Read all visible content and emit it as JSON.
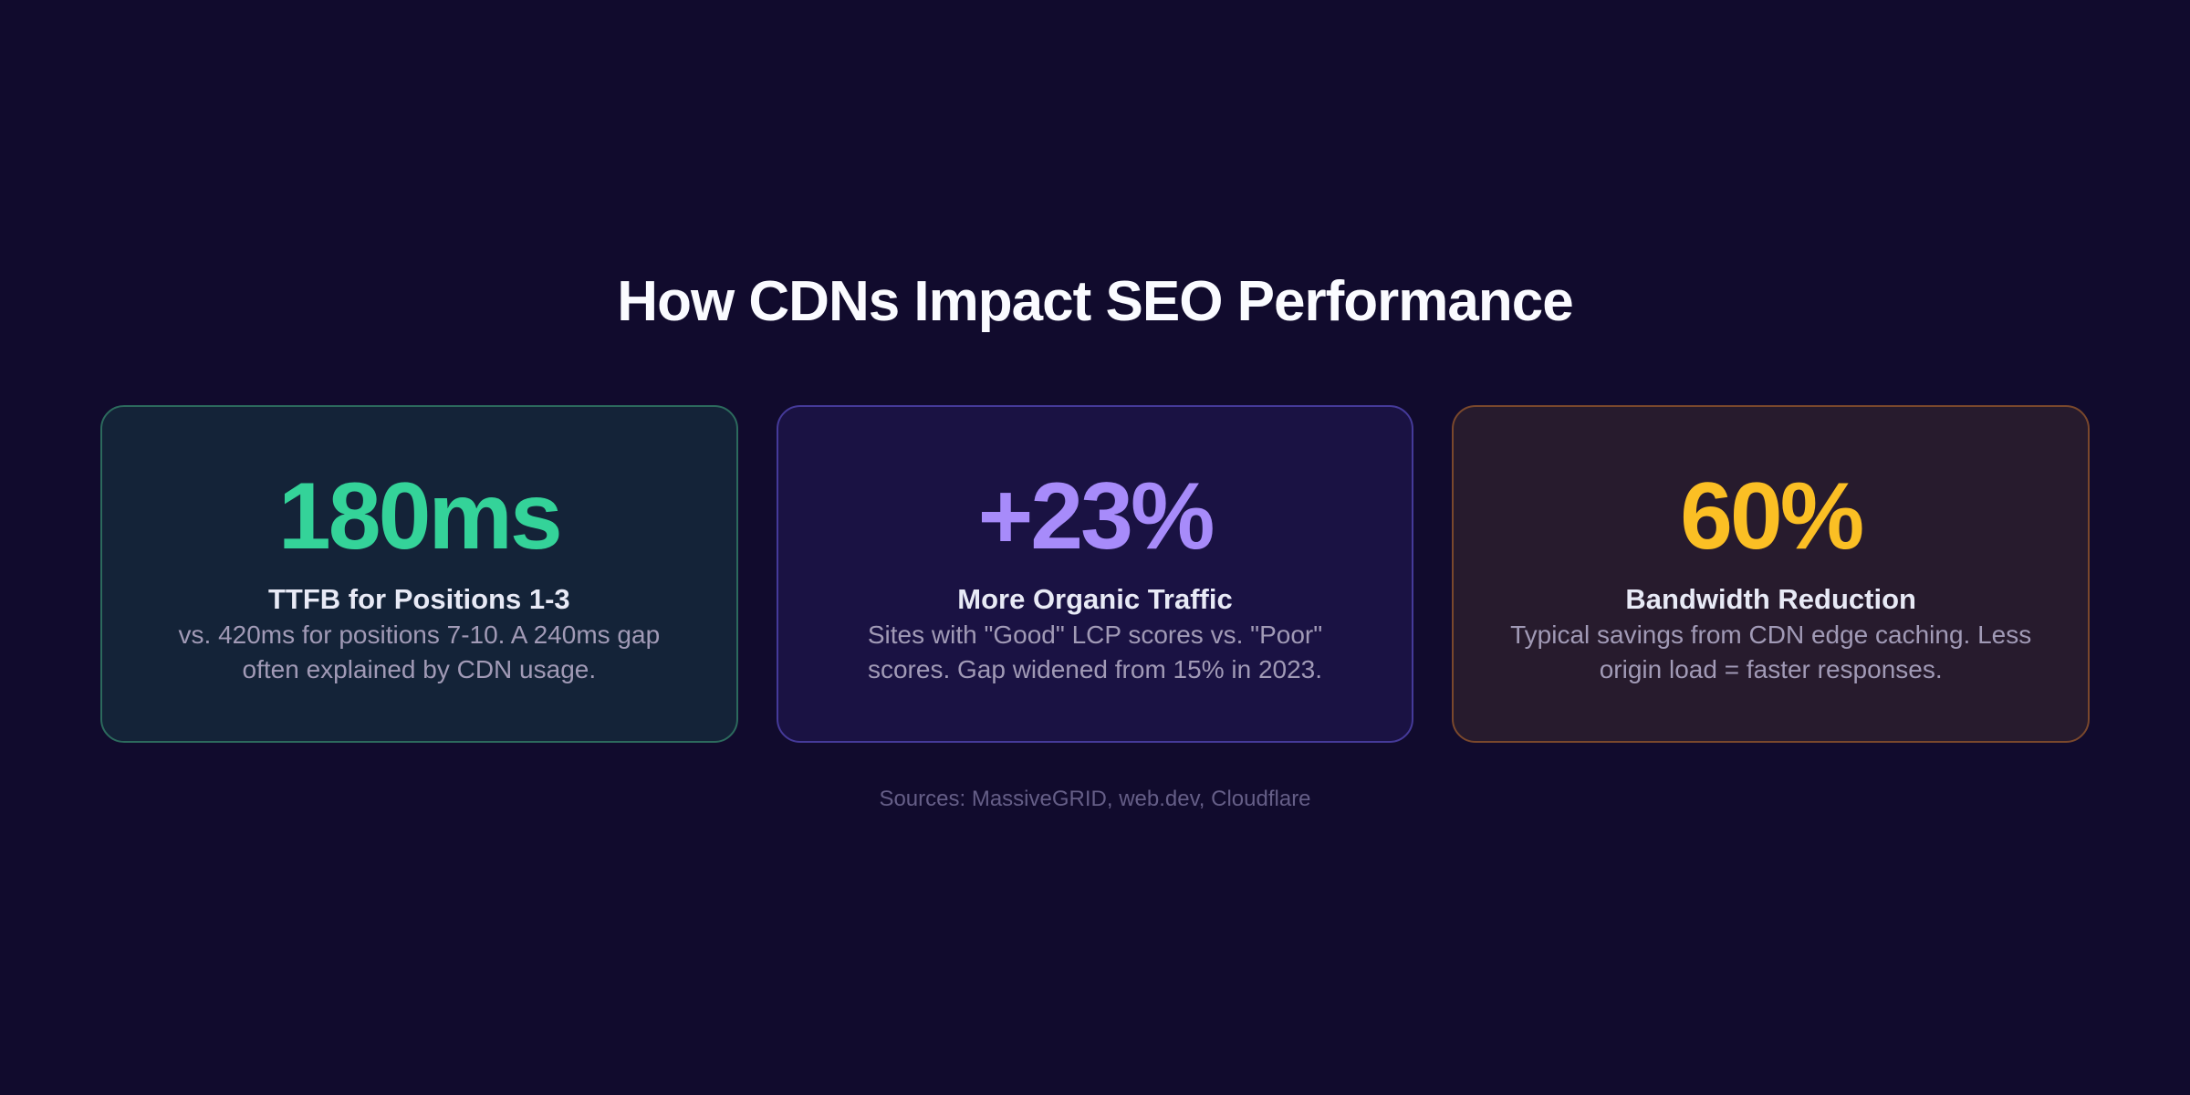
{
  "theme": {
    "page_background": "#110b2d",
    "title_color": "#fafbff",
    "label_color": "#e8eaf6",
    "description_color": "#a19ab6",
    "footer_color": "#655e87"
  },
  "header": {
    "title": "How CDNs Impact SEO Performance"
  },
  "cards": [
    {
      "value": "180ms",
      "label": "TTFB for Positions 1-3",
      "description": "vs. 420ms for positions 7-10. A 240ms gap often explained by CDN usage.",
      "accent": "#34d399",
      "background": "#142338",
      "border": "#2c6a5d"
    },
    {
      "value": "+23%",
      "label": "More Organic Traffic",
      "description": "Sites with \"Good\" LCP scores vs. \"Poor\" scores. Gap widened from 15% in 2023.",
      "accent": "#a78bfa",
      "background": "#1a1243",
      "border": "#453a99"
    },
    {
      "value": "60%",
      "label": "Bandwidth Reduction",
      "description": "Typical savings from CDN edge caching. Less origin load = faster responses.",
      "accent": "#fbbf24",
      "background": "#271b2d",
      "border": "#7a482c"
    }
  ],
  "footer": {
    "sources": "Sources: MassiveGRID, web.dev, Cloudflare"
  },
  "chart_data": {
    "type": "table",
    "title": "How CDNs Impact SEO Performance",
    "stats": [
      {
        "value": 180,
        "unit": "ms",
        "display": "180ms",
        "label": "TTFB for Positions 1-3",
        "note": "vs. 420ms for positions 7-10. A 240ms gap often explained by CDN usage.",
        "comparison_value": 420,
        "gap_value": 240
      },
      {
        "value": 23,
        "unit": "%",
        "display": "+23%",
        "label": "More Organic Traffic",
        "note": "Sites with \"Good\" LCP scores vs. \"Poor\" scores. Gap widened from 15% in 2023.",
        "previous_value": 15,
        "previous_year": 2023
      },
      {
        "value": 60,
        "unit": "%",
        "display": "60%",
        "label": "Bandwidth Reduction",
        "note": "Typical savings from CDN edge caching. Less origin load = faster responses."
      }
    ],
    "sources": "MassiveGRID, web.dev, Cloudflare",
    "layout": "three stat cards in a row, title above, sources caption below"
  }
}
